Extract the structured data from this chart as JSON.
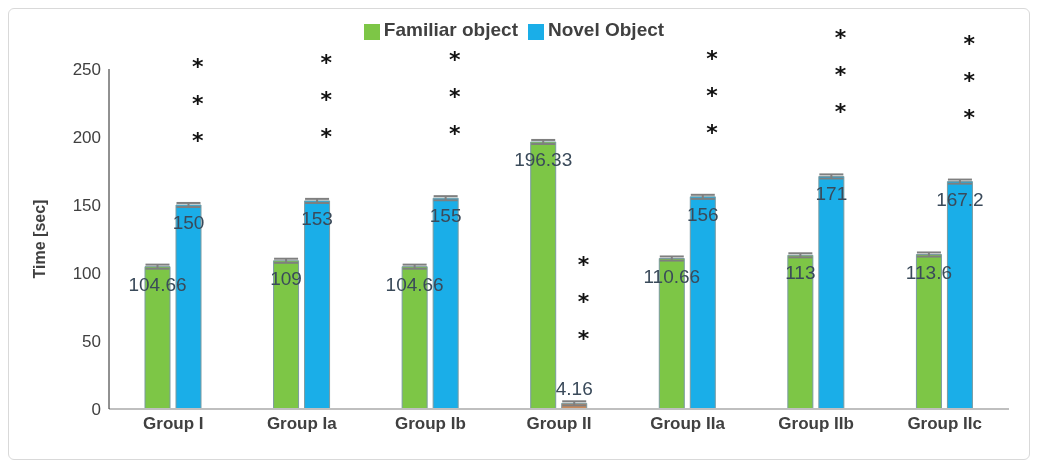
{
  "chart_data": {
    "type": "bar",
    "ylabel": "Time [sec]",
    "categories": [
      "Group I",
      "Group Ia",
      "Group Ib",
      "Group II",
      "Group IIa",
      "Group IIb",
      "Group IIc"
    ],
    "series": [
      {
        "name": "Familiar object",
        "color": "#7dc646",
        "values": [
          104.66,
          109,
          104.66,
          196.33,
          110.66,
          113,
          113.6
        ],
        "errors": [
          1.5,
          1.5,
          1.5,
          1.5,
          1.5,
          1.5,
          1.5
        ]
      },
      {
        "name": "Novel Object",
        "color": "#1aaee8",
        "colors": [
          "#1aaee8",
          "#1aaee8",
          "#1aaee8",
          "#c98a5c",
          "#1aaee8",
          "#1aaee8",
          "#1aaee8"
        ],
        "values": [
          150,
          153,
          155,
          4.16,
          156,
          171,
          167.2
        ],
        "errors": [
          1.5,
          1.5,
          1.5,
          1.5,
          1.5,
          1.5,
          1.5
        ]
      }
    ],
    "ylim": [
      0,
      250
    ],
    "yticks": [
      0,
      50,
      100,
      150,
      200,
      250
    ],
    "grid": false,
    "legend": "top",
    "data_labels": true,
    "annotations": [
      "***",
      "***",
      "***",
      "***",
      "***",
      "***",
      "***"
    ]
  }
}
